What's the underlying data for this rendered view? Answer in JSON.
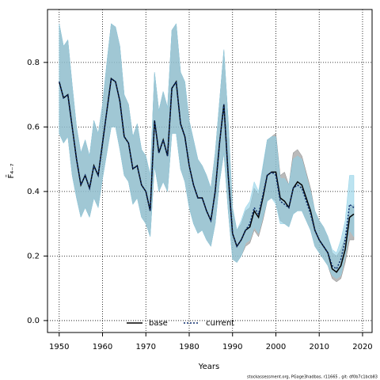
{
  "chart_data": {
    "type": "band-line",
    "xlabel": "Years",
    "ylabel": "F̄₄₋₇",
    "footer": "stockassessment.org, PGage3hadbas, r11665 , git: df0b7c1bcb83",
    "xlim": [
      1947.3,
      2022.2
    ],
    "ylim": [
      -0.037,
      0.964
    ],
    "xticks": [
      1950,
      1960,
      1970,
      1980,
      1990,
      2000,
      2010,
      2020
    ],
    "yticks": [
      {
        "value": 0,
        "label": "0.0"
      },
      0.2,
      0.4,
      0.6,
      0.8
    ],
    "grid": true,
    "legend": "bottom",
    "x": [
      1950,
      1951,
      1952,
      1953,
      1954,
      1955,
      1956,
      1957,
      1958,
      1959,
      1960,
      1961,
      1962,
      1963,
      1964,
      1965,
      1966,
      1967,
      1968,
      1969,
      1970,
      1971,
      1972,
      1973,
      1974,
      1975,
      1976,
      1977,
      1978,
      1979,
      1980,
      1981,
      1982,
      1983,
      1984,
      1985,
      1986,
      1987,
      1988,
      1989,
      1990,
      1991,
      1992,
      1993,
      1994,
      1995,
      1996,
      1997,
      1998,
      1999,
      2000,
      2001,
      2002,
      2003,
      2004,
      2005,
      2006,
      2007,
      2008,
      2009,
      2010,
      2011,
      2012,
      2013,
      2014,
      2015,
      2016,
      2017,
      2018
    ],
    "series": [
      {
        "name": "base",
        "color": "#000000",
        "band_color": "#8c8c8c",
        "dash": "solid",
        "values": [
          0.74,
          0.69,
          0.7,
          0.6,
          0.5,
          0.42,
          0.45,
          0.41,
          0.48,
          0.45,
          0.55,
          0.65,
          0.75,
          0.74,
          0.68,
          0.57,
          0.55,
          0.47,
          0.48,
          0.42,
          0.4,
          0.34,
          0.62,
          0.52,
          0.56,
          0.51,
          0.72,
          0.74,
          0.61,
          0.57,
          0.48,
          0.42,
          0.38,
          0.38,
          0.34,
          0.31,
          0.4,
          0.55,
          0.67,
          0.45,
          0.27,
          0.23,
          0.25,
          0.28,
          0.29,
          0.34,
          0.32,
          0.38,
          0.45,
          0.46,
          0.46,
          0.38,
          0.37,
          0.35,
          0.41,
          0.43,
          0.42,
          0.38,
          0.34,
          0.28,
          0.25,
          0.23,
          0.21,
          0.16,
          0.15,
          0.17,
          0.22,
          0.32,
          0.33
        ],
        "upper": [
          0.92,
          0.85,
          0.87,
          0.73,
          0.6,
          0.52,
          0.56,
          0.51,
          0.62,
          0.58,
          0.67,
          0.8,
          0.92,
          0.91,
          0.85,
          0.7,
          0.67,
          0.57,
          0.61,
          0.53,
          0.51,
          0.45,
          0.77,
          0.65,
          0.71,
          0.66,
          0.9,
          0.92,
          0.77,
          0.74,
          0.62,
          0.56,
          0.5,
          0.48,
          0.45,
          0.41,
          0.52,
          0.68,
          0.84,
          0.62,
          0.35,
          0.28,
          0.3,
          0.34,
          0.35,
          0.41,
          0.39,
          0.47,
          0.56,
          0.57,
          0.58,
          0.45,
          0.46,
          0.42,
          0.52,
          0.53,
          0.51,
          0.46,
          0.41,
          0.34,
          0.31,
          0.29,
          0.26,
          0.21,
          0.2,
          0.22,
          0.26,
          0.35,
          0.36
        ],
        "lower": [
          0.58,
          0.55,
          0.57,
          0.45,
          0.38,
          0.32,
          0.35,
          0.32,
          0.38,
          0.35,
          0.44,
          0.52,
          0.6,
          0.6,
          0.53,
          0.45,
          0.43,
          0.36,
          0.38,
          0.32,
          0.3,
          0.26,
          0.48,
          0.4,
          0.43,
          0.4,
          0.58,
          0.58,
          0.47,
          0.43,
          0.35,
          0.3,
          0.27,
          0.28,
          0.25,
          0.23,
          0.3,
          0.43,
          0.52,
          0.34,
          0.19,
          0.18,
          0.2,
          0.23,
          0.24,
          0.28,
          0.26,
          0.31,
          0.37,
          0.38,
          0.37,
          0.31,
          0.3,
          0.29,
          0.33,
          0.34,
          0.34,
          0.31,
          0.28,
          0.23,
          0.21,
          0.19,
          0.17,
          0.13,
          0.12,
          0.13,
          0.18,
          0.25,
          0.25
        ]
      },
      {
        "name": "current",
        "color": "#0a2a6b",
        "band_color": "#8fd0e6",
        "dash": "dotted",
        "values": [
          0.74,
          0.69,
          0.7,
          0.6,
          0.5,
          0.42,
          0.45,
          0.41,
          0.48,
          0.45,
          0.55,
          0.65,
          0.75,
          0.74,
          0.68,
          0.57,
          0.55,
          0.47,
          0.48,
          0.42,
          0.4,
          0.34,
          0.62,
          0.52,
          0.56,
          0.51,
          0.72,
          0.74,
          0.61,
          0.57,
          0.48,
          0.42,
          0.38,
          0.38,
          0.34,
          0.31,
          0.4,
          0.55,
          0.67,
          0.45,
          0.27,
          0.23,
          0.25,
          0.28,
          0.3,
          0.35,
          0.33,
          0.39,
          0.45,
          0.46,
          0.45,
          0.37,
          0.36,
          0.35,
          0.41,
          0.42,
          0.41,
          0.37,
          0.33,
          0.28,
          0.25,
          0.23,
          0.21,
          0.17,
          0.16,
          0.19,
          0.25,
          0.36,
          0.35
        ],
        "upper": [
          0.92,
          0.85,
          0.87,
          0.73,
          0.6,
          0.52,
          0.56,
          0.51,
          0.62,
          0.58,
          0.67,
          0.8,
          0.92,
          0.91,
          0.85,
          0.7,
          0.67,
          0.57,
          0.61,
          0.53,
          0.51,
          0.45,
          0.77,
          0.65,
          0.71,
          0.66,
          0.9,
          0.92,
          0.77,
          0.74,
          0.62,
          0.56,
          0.5,
          0.48,
          0.45,
          0.41,
          0.52,
          0.68,
          0.84,
          0.62,
          0.35,
          0.28,
          0.31,
          0.35,
          0.37,
          0.43,
          0.4,
          0.48,
          0.56,
          0.57,
          0.57,
          0.44,
          0.44,
          0.42,
          0.5,
          0.51,
          0.5,
          0.45,
          0.4,
          0.34,
          0.31,
          0.29,
          0.26,
          0.22,
          0.21,
          0.25,
          0.31,
          0.45,
          0.45
        ],
        "lower": [
          0.58,
          0.55,
          0.57,
          0.45,
          0.38,
          0.32,
          0.35,
          0.32,
          0.38,
          0.35,
          0.44,
          0.52,
          0.6,
          0.6,
          0.53,
          0.45,
          0.43,
          0.36,
          0.38,
          0.32,
          0.3,
          0.26,
          0.48,
          0.4,
          0.43,
          0.4,
          0.58,
          0.58,
          0.47,
          0.43,
          0.35,
          0.3,
          0.27,
          0.28,
          0.25,
          0.23,
          0.3,
          0.43,
          0.52,
          0.34,
          0.19,
          0.18,
          0.2,
          0.24,
          0.25,
          0.29,
          0.27,
          0.32,
          0.37,
          0.38,
          0.36,
          0.3,
          0.3,
          0.29,
          0.33,
          0.34,
          0.34,
          0.31,
          0.28,
          0.23,
          0.21,
          0.19,
          0.17,
          0.14,
          0.13,
          0.14,
          0.2,
          0.28,
          0.26
        ]
      }
    ]
  }
}
